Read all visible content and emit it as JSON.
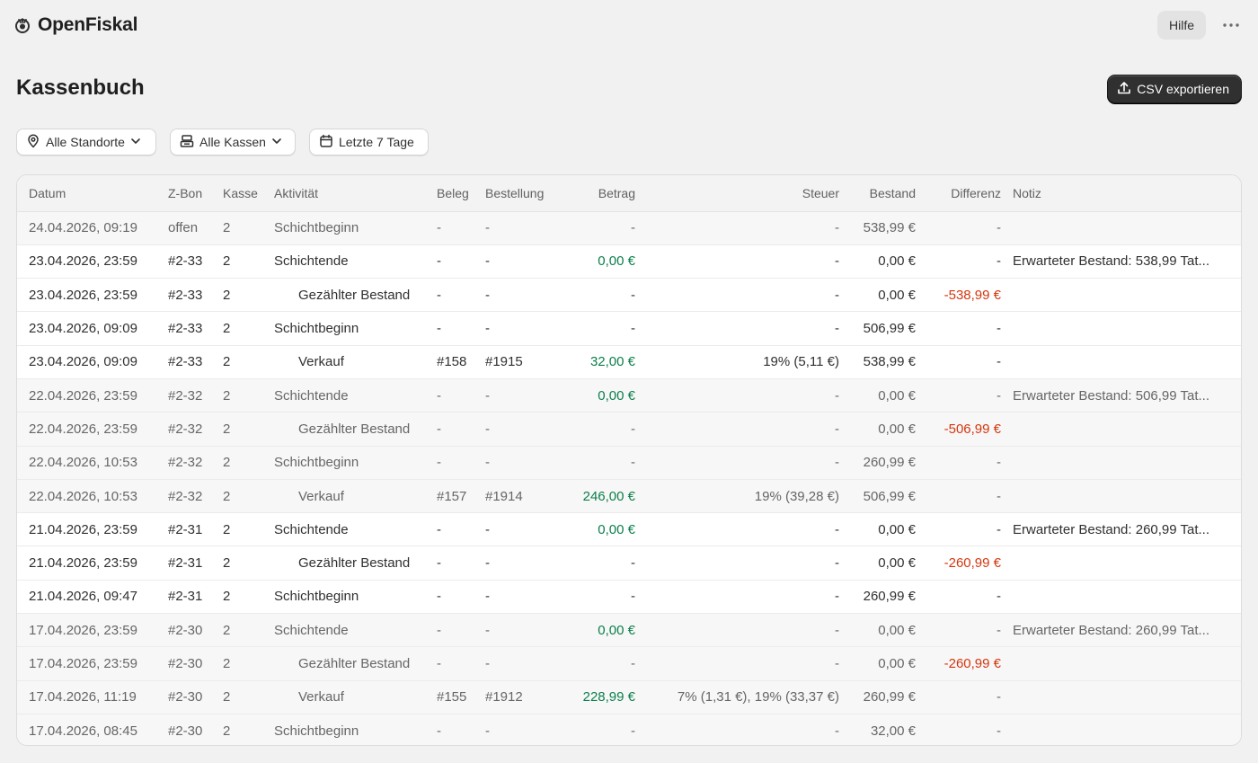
{
  "app": {
    "name": "OpenFiskal"
  },
  "header": {
    "help_label": "Hilfe"
  },
  "page": {
    "title": "Kassenbuch",
    "export_label": "CSV exportieren"
  },
  "filters": {
    "location": "Alle Standorte",
    "register": "Alle Kassen",
    "date_range": "Letzte 7 Tage"
  },
  "table": {
    "columns": [
      "Datum",
      "Z-Bon",
      "Kasse",
      "Aktivität",
      "Beleg",
      "Bestellung",
      "Betrag",
      "Steuer",
      "Bestand",
      "Differenz",
      "Notiz"
    ],
    "rows": [
      {
        "datum": "24.04.2026, 09:19",
        "zbon": "offen",
        "kasse": "2",
        "aktivitaet": "Schichtbeginn",
        "beleg": "-",
        "bestellung": "-",
        "betrag": "-",
        "steuer": "-",
        "bestand": "538,99 €",
        "differenz": "-",
        "notiz": ""
      },
      {
        "datum": "23.04.2026, 23:59",
        "zbon": "#2-33",
        "kasse": "2",
        "aktivitaet": "Schichtende",
        "beleg": "-",
        "bestellung": "-",
        "betrag": "0,00 €",
        "steuer": "-",
        "bestand": "0,00 €",
        "differenz": "-",
        "notiz": "Erwarteter Bestand: 538,99 Tat..."
      },
      {
        "datum": "23.04.2026, 23:59",
        "zbon": "#2-33",
        "kasse": "2",
        "aktivitaet": "Gezählter Bestand",
        "beleg": "-",
        "bestellung": "-",
        "betrag": "-",
        "steuer": "-",
        "bestand": "0,00 €",
        "differenz": "-538,99 €",
        "notiz": ""
      },
      {
        "datum": "23.04.2026, 09:09",
        "zbon": "#2-33",
        "kasse": "2",
        "aktivitaet": "Schichtbeginn",
        "beleg": "-",
        "bestellung": "-",
        "betrag": "-",
        "steuer": "-",
        "bestand": "506,99 €",
        "differenz": "-",
        "notiz": ""
      },
      {
        "datum": "23.04.2026, 09:09",
        "zbon": "#2-33",
        "kasse": "2",
        "aktivitaet": "Verkauf",
        "beleg": "#158",
        "bestellung": "#1915",
        "betrag": "32,00 €",
        "steuer": "19% (5,11 €)",
        "bestand": "538,99 €",
        "differenz": "-",
        "notiz": ""
      },
      {
        "datum": "22.04.2026, 23:59",
        "zbon": "#2-32",
        "kasse": "2",
        "aktivitaet": "Schichtende",
        "beleg": "-",
        "bestellung": "-",
        "betrag": "0,00 €",
        "steuer": "-",
        "bestand": "0,00 €",
        "differenz": "-",
        "notiz": "Erwarteter Bestand: 506,99 Tat..."
      },
      {
        "datum": "22.04.2026, 23:59",
        "zbon": "#2-32",
        "kasse": "2",
        "aktivitaet": "Gezählter Bestand",
        "beleg": "-",
        "bestellung": "-",
        "betrag": "-",
        "steuer": "-",
        "bestand": "0,00 €",
        "differenz": "-506,99 €",
        "notiz": ""
      },
      {
        "datum": "22.04.2026, 10:53",
        "zbon": "#2-32",
        "kasse": "2",
        "aktivitaet": "Schichtbeginn",
        "beleg": "-",
        "bestellung": "-",
        "betrag": "-",
        "steuer": "-",
        "bestand": "260,99 €",
        "differenz": "-",
        "notiz": ""
      },
      {
        "datum": "22.04.2026, 10:53",
        "zbon": "#2-32",
        "kasse": "2",
        "aktivitaet": "Verkauf",
        "beleg": "#157",
        "bestellung": "#1914",
        "betrag": "246,00 €",
        "steuer": "19% (39,28 €)",
        "bestand": "506,99 €",
        "differenz": "-",
        "notiz": ""
      },
      {
        "datum": "21.04.2026, 23:59",
        "zbon": "#2-31",
        "kasse": "2",
        "aktivitaet": "Schichtende",
        "beleg": "-",
        "bestellung": "-",
        "betrag": "0,00 €",
        "steuer": "-",
        "bestand": "0,00 €",
        "differenz": "-",
        "notiz": "Erwarteter Bestand: 260,99 Tat..."
      },
      {
        "datum": "21.04.2026, 23:59",
        "zbon": "#2-31",
        "kasse": "2",
        "aktivitaet": "Gezählter Bestand",
        "beleg": "-",
        "bestellung": "-",
        "betrag": "-",
        "steuer": "-",
        "bestand": "0,00 €",
        "differenz": "-260,99 €",
        "notiz": ""
      },
      {
        "datum": "21.04.2026, 09:47",
        "zbon": "#2-31",
        "kasse": "2",
        "aktivitaet": "Schichtbeginn",
        "beleg": "-",
        "bestellung": "-",
        "betrag": "-",
        "steuer": "-",
        "bestand": "260,99 €",
        "differenz": "-",
        "notiz": ""
      },
      {
        "datum": "17.04.2026, 23:59",
        "zbon": "#2-30",
        "kasse": "2",
        "aktivitaet": "Schichtende",
        "beleg": "-",
        "bestellung": "-",
        "betrag": "0,00 €",
        "steuer": "-",
        "bestand": "0,00 €",
        "differenz": "-",
        "notiz": "Erwarteter Bestand: 260,99 Tat..."
      },
      {
        "datum": "17.04.2026, 23:59",
        "zbon": "#2-30",
        "kasse": "2",
        "aktivitaet": "Gezählter Bestand",
        "beleg": "-",
        "bestellung": "-",
        "betrag": "-",
        "steuer": "-",
        "bestand": "0,00 €",
        "differenz": "-260,99 €",
        "notiz": ""
      },
      {
        "datum": "17.04.2026, 11:19",
        "zbon": "#2-30",
        "kasse": "2",
        "aktivitaet": "Verkauf",
        "beleg": "#155",
        "bestellung": "#1912",
        "betrag": "228,99 €",
        "steuer": "7% (1,31 €), 19% (33,37 €)",
        "bestand": "260,99 €",
        "differenz": "-",
        "notiz": ""
      },
      {
        "datum": "17.04.2026, 08:45",
        "zbon": "#2-30",
        "kasse": "2",
        "aktivitaet": "Schichtbeginn",
        "beleg": "-",
        "bestellung": "-",
        "betrag": "-",
        "steuer": "-",
        "bestand": "32,00 €",
        "differenz": "-",
        "notiz": ""
      }
    ]
  },
  "colors": {
    "positive_amount": "#0b7f4c",
    "negative_difference": "#d4370f",
    "primary_button": "#303030"
  }
}
